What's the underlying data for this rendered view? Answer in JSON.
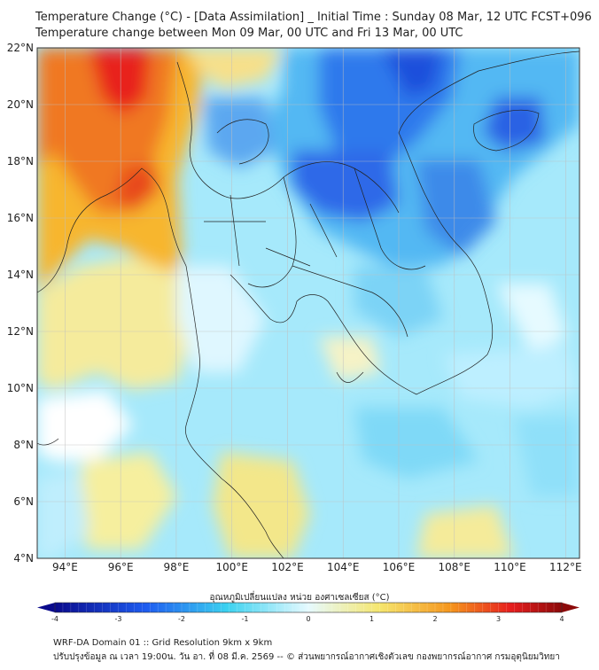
{
  "title": {
    "line1": "Temperature Change (°C) - [Data Assimilation] _ Initial Time : Sunday 08 Mar, 12 UTC FCST+096",
    "line2": "Temperature change between Mon 09 Mar, 00 UTC and Fri 13 Mar, 00 UTC"
  },
  "map": {
    "lat_labels": [
      "22°N",
      "20°N",
      "18°N",
      "16°N",
      "14°N",
      "12°N",
      "10°N",
      "8°N",
      "6°N",
      "4°N"
    ],
    "lon_labels": [
      "94°E",
      "96°E",
      "98°E",
      "100°E",
      "102°E",
      "104°E",
      "106°E",
      "108°E",
      "110°E",
      "112°E"
    ]
  },
  "colorbar": {
    "title": "อุณหภูมิเปลี่ยนแปลง หน่วย องศาเซลเซียส (°C)",
    "min": -4,
    "max": 4,
    "tick_labels": [
      "-4",
      "-3",
      "-2",
      "-1",
      "0",
      "1",
      "2",
      "3",
      "4"
    ],
    "colors": {
      "dark_blue": "#0a0a8c",
      "blue": "#1e5cf0",
      "cyan": "#3cd2f0",
      "pale": "#e6faff",
      "yellow": "#f5e66e",
      "orange": "#f5961e",
      "red": "#e61e1e",
      "dark_red": "#8c0a0a"
    }
  },
  "footer": {
    "line1": "WRF-DA Domain 01 :: Grid Resolution 9km x 9km",
    "line2": "ปรับปรุงข้อมูล ณ เวลา 19:00น. วัน อา. ที่ 08 มี.ค. 2569 -- © ส่วนพยากรณ์อากาศเชิงตัวเลข กองพยากรณ์อากาศ กรมอุตุนิยมวิทยา"
  }
}
